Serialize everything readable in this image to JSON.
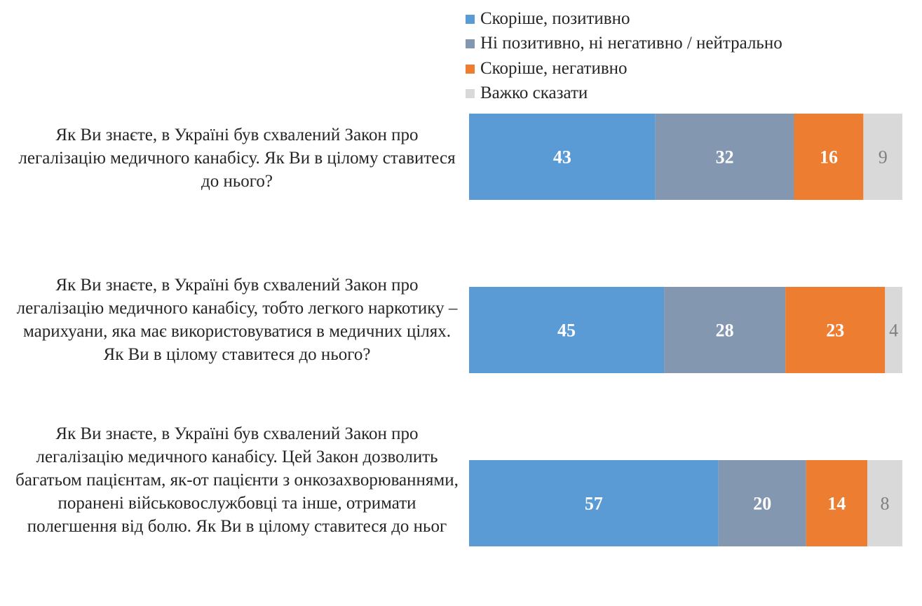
{
  "chart_data": {
    "type": "bar",
    "orientation": "horizontal",
    "stacked": "100%",
    "legend_position": "top",
    "categories": [
      "Як Ви знаєте, в Україні був схвалений Закон про легалізацію медичного канабісу. Як Ви в цілому ставитеся до нього?",
      "Як Ви знаєте, в Україні був схвалений Закон про легалізацію медичного канабісу, тобто легкого наркотику – марихуани, яка має використовуватися в медичних цілях. Як Ви в цілому ставитеся до нього?",
      "Як Ви знаєте, в Україні був схвалений Закон про легалізацію медичного канабісу. Цей Закон дозволить багатьом пацієнтам, як-от пацієнти з онкозахворюваннями, поранені військовослужбовці та інше, отримати полегшення від болю. Як Ви в цілому ставитеся до ньог"
    ],
    "series": [
      {
        "name": "Скоріше, позитивно",
        "values": [
          43,
          45,
          57
        ],
        "color": "#5B9BD5",
        "label_color": "#ffffff"
      },
      {
        "name": "Ні позитивно, ні негативно / нейтрально",
        "values": [
          32,
          28,
          20
        ],
        "color": "#8497B0",
        "label_color": "#ffffff"
      },
      {
        "name": "Скоріше, негативно",
        "values": [
          16,
          23,
          14
        ],
        "color": "#ED7D31",
        "label_color": "#ffffff"
      },
      {
        "name": "Важко сказати",
        "values": [
          9,
          4,
          8
        ],
        "color": "#D9D9D9",
        "label_color": "#7F7F7F"
      }
    ]
  }
}
